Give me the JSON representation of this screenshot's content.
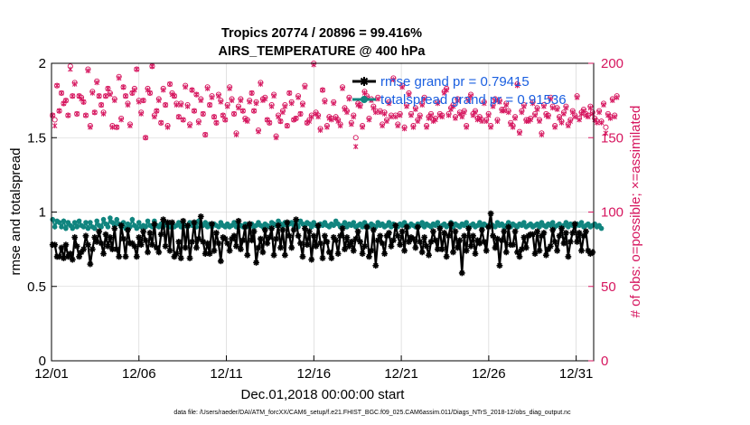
{
  "chart_data": {
    "type": "line",
    "title": "Tropics 20774 / 20896 = 99.416%",
    "subtitle": "AIRS_TEMPERATURE @ 400 hPa",
    "xlabel": "Dec.01,2018 00:00:00 start",
    "ylabel": "rmse and totalspread",
    "y2label": "# of obs: o=possible; ×=assimilated",
    "footnote": "data file: /Users/raeder/DAI/ATM_forcXX/CAM6_setup/f.e21.FHIST_BGC.f09_025.CAM6assim.011/Diags_NTrS_2018-12/obs_diag_output.nc",
    "xlim": [
      0,
      31
    ],
    "ylim": [
      0,
      2
    ],
    "y2lim": [
      0,
      200
    ],
    "x_tick_values": [
      0,
      5,
      10,
      15,
      20,
      25,
      30
    ],
    "x_tick_labels": [
      "12/01",
      "12/06",
      "12/11",
      "12/16",
      "12/21",
      "12/26",
      "12/31"
    ],
    "y_tick_labels": [
      "0",
      "0.5",
      "1",
      "1.5",
      "2"
    ],
    "y2_tick_labels": [
      "0",
      "50",
      "100",
      "150",
      "200"
    ],
    "series": [
      {
        "name": "rmse grand pr = 0.79415",
        "axis": "left",
        "color": "#000000",
        "marker": "asterisk",
        "values": [
          0.78,
          0.78,
          0.7,
          0.7,
          0.76,
          0.69,
          0.78,
          0.7,
          0.72,
          0.68,
          0.83,
          0.77,
          0.7,
          0.73,
          0.75,
          0.84,
          0.78,
          0.65,
          0.75,
          0.83,
          0.8,
          0.87,
          0.79,
          0.72,
          0.85,
          0.77,
          0.83,
          0.75,
          0.89,
          0.75,
          0.7,
          0.91,
          0.82,
          0.7,
          0.88,
          0.79,
          0.79,
          0.77,
          0.7,
          0.83,
          0.78,
          0.87,
          0.81,
          0.73,
          0.86,
          0.78,
          0.92,
          0.76,
          0.73,
          0.85,
          0.95,
          0.77,
          0.93,
          0.74,
          0.93,
          0.7,
          0.72,
          0.8,
          0.69,
          0.94,
          0.76,
          0.91,
          0.69,
          0.8,
          0.93,
          0.76,
          0.82,
          0.97,
          0.8,
          0.72,
          0.79,
          0.72,
          0.92,
          0.74,
          0.86,
          0.79,
          0.67,
          0.83,
          0.82,
          0.79,
          0.74,
          0.82,
          0.84,
          0.77,
          0.94,
          0.75,
          0.81,
          0.9,
          0.71,
          0.92,
          0.81,
          0.87,
          0.66,
          0.76,
          0.82,
          0.73,
          0.88,
          0.79,
          0.83,
          0.89,
          0.71,
          0.82,
          0.91,
          0.76,
          0.88,
          0.71,
          0.93,
          0.84,
          0.76,
          0.88,
          0.95,
          0.84,
          0.79,
          0.7,
          0.89,
          0.78,
          0.87,
          0.68,
          0.84,
          0.77,
          0.91,
          0.79,
          0.69,
          0.84,
          0.8,
          0.73,
          0.69,
          0.83,
          0.81,
          0.72,
          0.84,
          0.89,
          0.75,
          0.83,
          0.77,
          0.8,
          0.74,
          0.82,
          0.87,
          0.8,
          0.72,
          0.77,
          0.9,
          0.7,
          0.74,
          0.88,
          0.64,
          0.81,
          0.84,
          0.79,
          0.72,
          0.84,
          0.86,
          0.77,
          0.81,
          0.91,
          0.84,
          0.78,
          0.87,
          0.74,
          0.9,
          0.8,
          0.83,
          0.82,
          0.76,
          0.9,
          0.8,
          0.73,
          0.83,
          0.77,
          0.71,
          0.8,
          0.87,
          0.81,
          0.75,
          0.89,
          0.75,
          0.86,
          0.7,
          0.84,
          0.92,
          0.73,
          0.87,
          0.76,
          0.81,
          0.59,
          0.84,
          0.74,
          0.89,
          0.77,
          0.84,
          0.72,
          0.81,
          0.79,
          0.88,
          0.8,
          0.74,
          0.9,
          0.99,
          0.84,
          0.76,
          0.82,
          0.64,
          0.81,
          0.87,
          0.73,
          0.9,
          0.78,
          0.78,
          0.87,
          0.73,
          0.7,
          0.75,
          0.83,
          0.76,
          0.84,
          0.85,
          0.85,
          0.72,
          0.87,
          0.74,
          0.84,
          0.86,
          0.71,
          0.75,
          0.77,
          0.88,
          0.8,
          0.74,
          0.84,
          0.89,
          0.79,
          0.86,
          0.7,
          0.8,
          0.86,
          0.92,
          0.8,
          0.86,
          0.74,
          0.84,
          0.87,
          0.74,
          0.72,
          0.73
        ]
      },
      {
        "name": "totalspread grand pr = 0.91536",
        "axis": "left",
        "color": "#11857f",
        "marker": "circle",
        "values": [
          0.95,
          0.9,
          0.94,
          0.93,
          0.9,
          0.94,
          0.89,
          0.93,
          0.91,
          0.89,
          0.93,
          0.9,
          0.94,
          0.91,
          0.9,
          0.93,
          0.89,
          0.93,
          0.9,
          0.89,
          0.94,
          0.91,
          0.9,
          0.95,
          0.92,
          0.9,
          0.96,
          0.93,
          0.91,
          0.95,
          0.92,
          0.9,
          0.93,
          0.89,
          0.92,
          0.9,
          0.95,
          0.91,
          0.89,
          0.93,
          0.9,
          0.91,
          0.9,
          0.94,
          0.91,
          0.9,
          0.94,
          0.91,
          0.9,
          0.92,
          0.9,
          0.93,
          0.91,
          0.9,
          0.92,
          0.9,
          0.91,
          0.93,
          0.9,
          0.92,
          0.91,
          0.9,
          0.93,
          0.91,
          0.92,
          0.9,
          0.94,
          0.92,
          0.91,
          0.93,
          0.9,
          0.92,
          0.9,
          0.92,
          0.91,
          0.9,
          0.93,
          0.91,
          0.9,
          0.92,
          0.9,
          0.91,
          0.93,
          0.9,
          0.92,
          0.91,
          0.9,
          0.92,
          0.91,
          0.9,
          0.92,
          0.9,
          0.91,
          0.93,
          0.91,
          0.9,
          0.92,
          0.91,
          0.9,
          0.93,
          0.92,
          0.91,
          0.94,
          0.92,
          0.91,
          0.93,
          0.91,
          0.92,
          0.93,
          0.91,
          0.92,
          0.9,
          0.94,
          0.92,
          0.91,
          0.93,
          0.92,
          0.9,
          0.93,
          0.91,
          0.9,
          0.92,
          0.91,
          0.93,
          0.91,
          0.9,
          0.92,
          0.91,
          0.94,
          0.92,
          0.9,
          0.91,
          0.93,
          0.9,
          0.92,
          0.91,
          0.93,
          0.9,
          0.91,
          0.92,
          0.9,
          0.93,
          0.91,
          0.9,
          0.92,
          0.91,
          0.9,
          0.93,
          0.91,
          0.92,
          0.9,
          0.91,
          0.93,
          0.9,
          0.92,
          0.91,
          0.9,
          0.92,
          0.91,
          0.93,
          0.91,
          0.9,
          0.92,
          0.91,
          0.9,
          0.92,
          0.91,
          0.93,
          0.9,
          0.92,
          0.91,
          0.9,
          0.92,
          0.91,
          0.93,
          0.9,
          0.91,
          0.92,
          0.9,
          0.91,
          0.93,
          0.9,
          0.92,
          0.91,
          0.9,
          0.92,
          0.91,
          0.93,
          0.9,
          0.91,
          0.92,
          0.9,
          0.91,
          0.93,
          0.9,
          0.92,
          0.91,
          0.9,
          0.92,
          0.91,
          0.9,
          0.93,
          0.91,
          0.92,
          0.9,
          0.91,
          0.93,
          0.9,
          0.92,
          0.91,
          0.9,
          0.92,
          0.91,
          0.93,
          0.9,
          0.91,
          0.92,
          0.9,
          0.91,
          0.92,
          0.9,
          0.93,
          0.91,
          0.9,
          0.92,
          0.91,
          0.93,
          0.9,
          0.91,
          0.92,
          0.9,
          0.91,
          0.93,
          0.9,
          0.92,
          0.91,
          0.9,
          0.92,
          0.91,
          0.93,
          0.9,
          0.91,
          0.92,
          0.9,
          0.91,
          0.92,
          0.9,
          0.91,
          0.89
        ]
      },
      {
        "name": "# obs possible",
        "axis": "right",
        "color": "#d6155e",
        "marker": "o",
        "values": [
          165,
          162,
          185,
          168,
          180,
          173,
          175,
          165,
          198,
          178,
          187,
          166,
          178,
          177,
          174,
          165,
          196,
          158,
          181,
          167,
          188,
          178,
          172,
          167,
          178,
          183,
          180,
          158,
          176,
          157,
          191,
          163,
          184,
          178,
          173,
          159,
          180,
          183,
          196,
          175,
          167,
          175,
          150,
          183,
          180,
          198,
          165,
          168,
          176,
          160,
          183,
          172,
          158,
          186,
          180,
          178,
          173,
          164,
          173,
          162,
          185,
          172,
          159,
          182,
          168,
          179,
          161,
          176,
          166,
          152,
          184,
          172,
          178,
          164,
          160,
          179,
          175,
          165,
          162,
          172,
          184,
          176,
          166,
          153,
          171,
          176,
          168,
          163,
          162,
          175,
          180,
          168,
          174,
          155,
          187,
          176,
          177,
          162,
          160,
          172,
          179,
          151,
          165,
          161,
          168,
          172,
          158,
          180,
          174,
          162,
          163,
          178,
          166,
          173,
          185,
          160,
          162,
          165,
          200,
          167,
          165,
          156,
          182,
          175,
          158,
          164,
          163,
          174,
          164,
          162,
          159,
          184,
          170,
          168,
          177,
          160,
          165,
          150,
          173,
          172,
          158,
          181,
          178,
          163,
          176,
          171,
          168,
          177,
          168,
          159,
          167,
          162,
          174,
          165,
          190,
          165,
          159,
          166,
          185,
          157,
          172,
          180,
          166,
          158,
          170,
          162,
          165,
          173,
          177,
          158,
          164,
          166,
          162,
          163,
          174,
          166,
          165,
          181,
          183,
          166,
          170,
          172,
          164,
          176,
          167,
          165,
          168,
          158,
          176,
          179,
          166,
          168,
          163,
          164,
          162,
          174,
          162,
          166,
          158,
          172,
          176,
          162,
          175,
          169,
          169,
          173,
          168,
          160,
          158,
          164,
          186,
          154,
          168,
          172,
          162,
          162,
          163,
          174,
          166,
          170,
          162,
          153,
          172,
          166,
          165,
          177,
          171,
          158,
          170,
          164,
          161,
          167,
          171,
          159,
          162,
          168,
          165,
          178,
          163,
          167,
          169,
          166,
          165,
          171,
          167,
          163,
          161,
          168,
          161,
          173,
          157,
          166,
          164,
          176,
          165,
          178
        ]
      },
      {
        "name": "# obs assimilated",
        "axis": "right",
        "color": "#d6155e",
        "marker": "x",
        "values": [
          165,
          158,
          185,
          168,
          180,
          173,
          175,
          165,
          196,
          178,
          186,
          166,
          178,
          176,
          174,
          165,
          195,
          157,
          180,
          167,
          187,
          178,
          172,
          166,
          178,
          183,
          179,
          157,
          175,
          157,
          190,
          162,
          184,
          178,
          172,
          158,
          180,
          182,
          196,
          174,
          166,
          175,
          150,
          182,
          180,
          198,
          164,
          168,
          175,
          160,
          182,
          172,
          157,
          186,
          179,
          178,
          172,
          164,
          172,
          162,
          184,
          171,
          158,
          182,
          168,
          179,
          160,
          175,
          166,
          152,
          183,
          172,
          177,
          164,
          160,
          178,
          174,
          165,
          162,
          171,
          183,
          175,
          166,
          152,
          170,
          175,
          168,
          162,
          161,
          174,
          180,
          168,
          173,
          154,
          186,
          175,
          176,
          162,
          160,
          171,
          178,
          150,
          164,
          161,
          167,
          171,
          158,
          180,
          173,
          162,
          163,
          177,
          166,
          172,
          184,
          160,
          161,
          164,
          199,
          166,
          164,
          155,
          182,
          174,
          157,
          163,
          162,
          173,
          163,
          161,
          158,
          183,
          169,
          167,
          176,
          159,
          164,
          144,
          172,
          171,
          157,
          180,
          177,
          162,
          175,
          170,
          167,
          176,
          167,
          158,
          166,
          161,
          173,
          164,
          189,
          164,
          158,
          165,
          184,
          156,
          171,
          179,
          165,
          157,
          169,
          161,
          164,
          172,
          176,
          157,
          163,
          165,
          161,
          162,
          173,
          165,
          164,
          180,
          182,
          165,
          169,
          171,
          163,
          175,
          166,
          164,
          167,
          157,
          175,
          178,
          165,
          167,
          162,
          163,
          161,
          173,
          161,
          165,
          157,
          171,
          175,
          161,
          174,
          168,
          168,
          172,
          167,
          159,
          157,
          163,
          185,
          153,
          167,
          171,
          161,
          161,
          162,
          173,
          165,
          169,
          161,
          152,
          171,
          165,
          164,
          176,
          170,
          157,
          169,
          163,
          160,
          166,
          170,
          158,
          161,
          167,
          164,
          177,
          162,
          166,
          168,
          165,
          164,
          170,
          166,
          162,
          160,
          167,
          160,
          172,
          153,
          165,
          163,
          175,
          164,
          177
        ]
      }
    ]
  }
}
